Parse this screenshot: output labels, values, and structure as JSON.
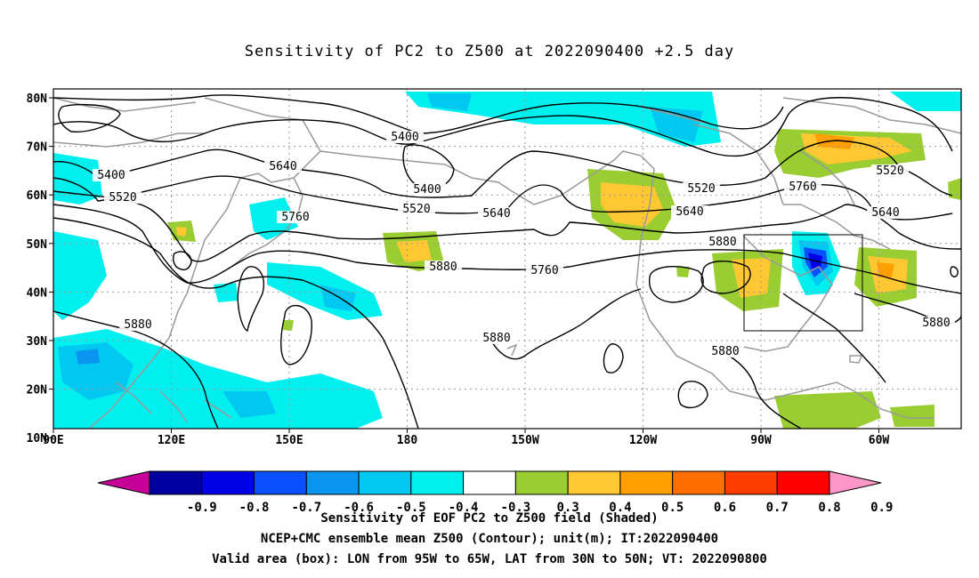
{
  "title": "Sensitivity of PC2 to Z500 at 2022090400 +2.5 day",
  "map": {
    "lat_labels": [
      "80N",
      "70N",
      "60N",
      "50N",
      "40N",
      "30N",
      "20N",
      "10N"
    ],
    "lon_labels": [
      "90E",
      "120E",
      "150E",
      "180",
      "150W",
      "120W",
      "90W",
      "60W"
    ],
    "contour_labels": [
      "5400",
      "5400",
      "5400",
      "5520",
      "5520",
      "5520",
      "5520",
      "5640",
      "5640",
      "5640",
      "5640",
      "5760",
      "5760",
      "5760",
      "5880",
      "5880",
      "5880",
      "5880",
      "5880",
      "5880"
    ],
    "valid_box": {
      "lon_from": "95W",
      "lon_to": "65W",
      "lat_from": "30N",
      "lat_to": "50N"
    }
  },
  "colorbar": {
    "labels": [
      "-0.9",
      "-0.8",
      "-0.7",
      "-0.6",
      "-0.5",
      "-0.4",
      "-0.3",
      "0.3",
      "0.4",
      "0.5",
      "0.6",
      "0.7",
      "0.8",
      "0.9"
    ],
    "colors": [
      "#c8009a",
      "#0000a0",
      "#0000e6",
      "#0a50ff",
      "#0a96f0",
      "#00c8f0",
      "#00f0f0",
      "#ffffff",
      "#9acd32",
      "#ffc832",
      "#ffa000",
      "#ff6e00",
      "#ff3c00",
      "#ff0000",
      "#ff96c8"
    ]
  },
  "footer": {
    "line1": "Sensitivity of EOF PC2 to Z500 field (Shaded)",
    "line2": "NCEP+CMC ensemble mean Z500 (Contour); unit(m); IT:2022090400",
    "line3": "Valid area (box): LON from 95W to 65W, LAT from 30N to 50N; VT: 2022090800"
  }
}
